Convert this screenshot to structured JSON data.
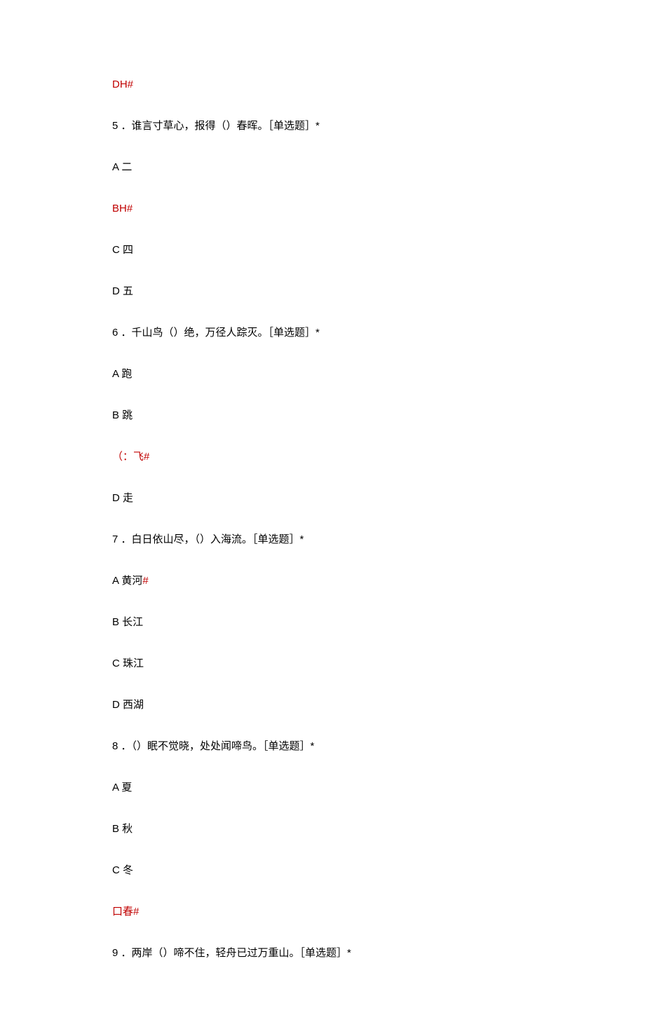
{
  "lines": [
    {
      "segments": [
        {
          "text": "DH#",
          "color": "red"
        }
      ]
    },
    {
      "segments": [
        {
          "text": "5 ．谁言寸草心，报得（）春晖。［单选题］*",
          "color": "black"
        }
      ]
    },
    {
      "segments": [
        {
          "text": "A 二",
          "color": "black"
        }
      ]
    },
    {
      "segments": [
        {
          "text": "BH#",
          "color": "red"
        }
      ]
    },
    {
      "segments": [
        {
          "text": "C 四",
          "color": "black"
        }
      ]
    },
    {
      "segments": [
        {
          "text": "D 五",
          "color": "black"
        }
      ]
    },
    {
      "segments": [
        {
          "text": "6 ．千山鸟（）绝，万径人踪灭。［单选题］*",
          "color": "black"
        }
      ]
    },
    {
      "segments": [
        {
          "text": "A 跑",
          "color": "black"
        }
      ]
    },
    {
      "segments": [
        {
          "text": "B 跳",
          "color": "black"
        }
      ]
    },
    {
      "segments": [
        {
          "text": "（：飞#",
          "color": "red"
        }
      ]
    },
    {
      "segments": [
        {
          "text": "D 走",
          "color": "black"
        }
      ]
    },
    {
      "segments": [
        {
          "text": "7 ．白日依山尽，（）入海流。［单选题］*",
          "color": "black"
        }
      ]
    },
    {
      "segments": [
        {
          "text": "A 黄河",
          "color": "black"
        },
        {
          "text": "#",
          "color": "red"
        }
      ]
    },
    {
      "segments": [
        {
          "text": "B 长江",
          "color": "black"
        }
      ]
    },
    {
      "segments": [
        {
          "text": "C 珠江",
          "color": "black"
        }
      ]
    },
    {
      "segments": [
        {
          "text": "D 西湖",
          "color": "black"
        }
      ]
    },
    {
      "segments": [
        {
          "text": "8 ．（）眠不觉晓，处处闻啼鸟。［单选题］*",
          "color": "black"
        }
      ]
    },
    {
      "segments": [
        {
          "text": "A 夏",
          "color": "black"
        }
      ]
    },
    {
      "segments": [
        {
          "text": "B 秋",
          "color": "black"
        }
      ]
    },
    {
      "segments": [
        {
          "text": "C 冬",
          "color": "black"
        }
      ]
    },
    {
      "segments": [
        {
          "text": "口春#",
          "color": "red"
        }
      ]
    },
    {
      "segments": [
        {
          "text": "9 ．两岸（）啼不住，轻舟已过万重山。［单选题］*",
          "color": "black"
        }
      ]
    }
  ]
}
